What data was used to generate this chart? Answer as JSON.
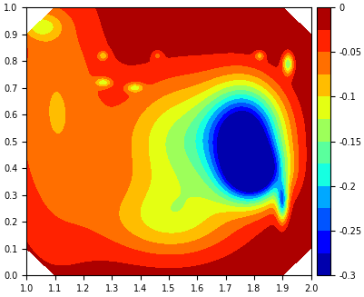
{
  "xlim": [
    1.0,
    2.0
  ],
  "ylim": [
    0.0,
    1.0
  ],
  "clim": [
    -0.3,
    0.0
  ],
  "colorbar_ticks": [
    0,
    -0.05,
    -0.1,
    -0.15,
    -0.2,
    -0.25,
    -0.3
  ],
  "colorbar_ticklabels": [
    "0",
    "-0.05",
    "-0.1",
    "-0.15",
    "-0.2",
    "-0.25",
    "-0.3"
  ],
  "xticks": [
    1.0,
    1.1,
    1.2,
    1.3,
    1.4,
    1.5,
    1.6,
    1.7,
    1.8,
    1.9,
    2.0
  ],
  "yticks": [
    0.0,
    0.1,
    0.2,
    0.3,
    0.4,
    0.5,
    0.6,
    0.7,
    0.8,
    0.9,
    1.0
  ],
  "n_levels": 13,
  "background_color": "#ffffff"
}
